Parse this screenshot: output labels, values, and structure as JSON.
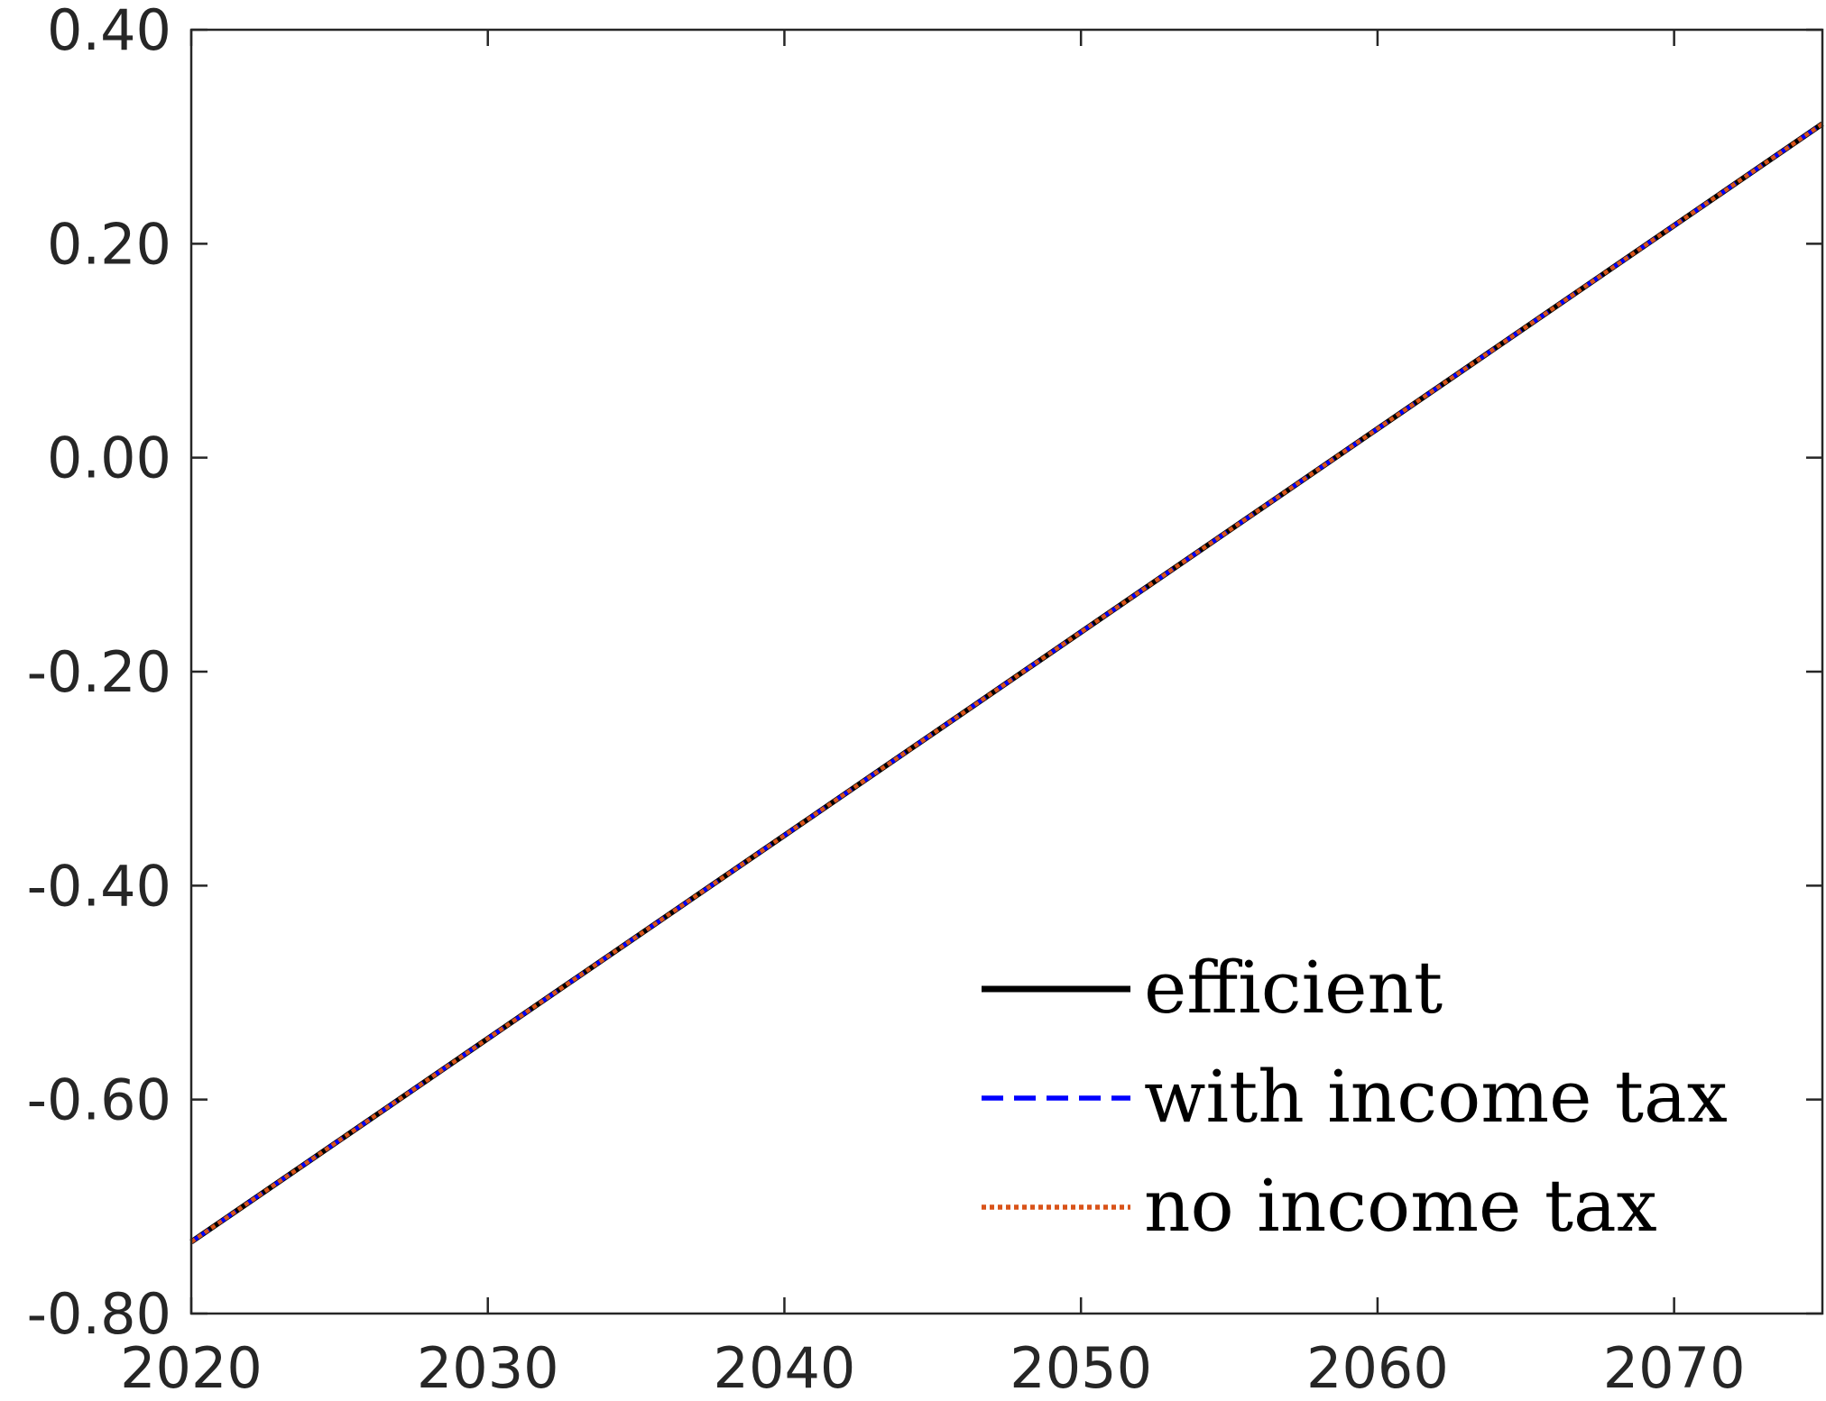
{
  "chart_data": {
    "type": "line",
    "title": "",
    "xlabel": "",
    "ylabel": "",
    "xlim": [
      2020,
      2075
    ],
    "ylim": [
      -0.8,
      0.4
    ],
    "xticks": [
      2020,
      2030,
      2040,
      2050,
      2060,
      2070
    ],
    "xtick_labels": [
      "2020",
      "2030",
      "2040",
      "2050",
      "2060",
      "2070"
    ],
    "yticks": [
      -0.8,
      -0.6,
      -0.4,
      -0.2,
      0.0,
      0.2,
      0.4
    ],
    "ytick_labels": [
      "-0.80",
      "-0.60",
      "-0.40",
      "-0.20",
      "0.00",
      "0.20",
      "0.40"
    ],
    "grid": false,
    "legend_position": "bottom-right",
    "x": [
      2020,
      2030,
      2040,
      2050,
      2060,
      2070,
      2075
    ],
    "series": [
      {
        "name": "efficient",
        "color": "#000000",
        "style": "solid",
        "values": [
          -0.733,
          -0.543,
          -0.353,
          -0.163,
          0.027,
          0.217,
          0.312
        ]
      },
      {
        "name": "with income tax",
        "color": "#0000ff",
        "style": "dashed",
        "values": [
          -0.733,
          -0.543,
          -0.353,
          -0.163,
          0.027,
          0.217,
          0.312
        ]
      },
      {
        "name": "no income tax",
        "color": "#d95319",
        "style": "dotted",
        "values": [
          -0.733,
          -0.543,
          -0.353,
          -0.163,
          0.027,
          0.217,
          0.312
        ]
      }
    ]
  }
}
